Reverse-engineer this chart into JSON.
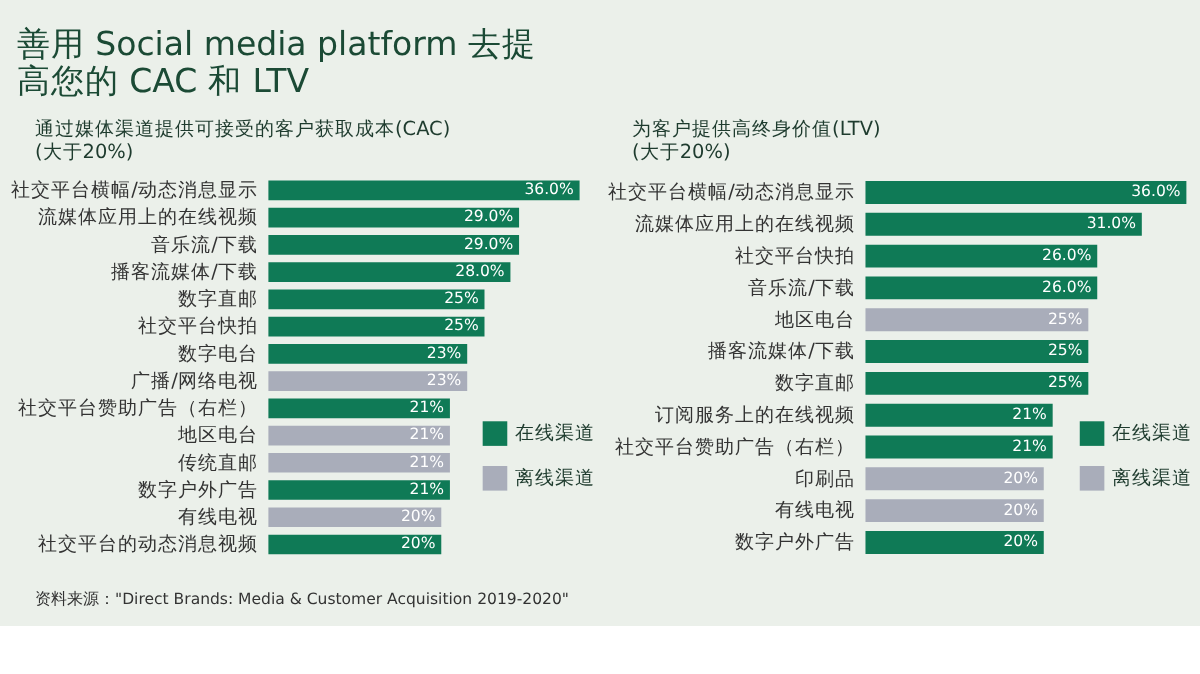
{
  "chart_data": [
    {
      "type": "bar",
      "orientation": "horizontal",
      "title": "善用 Social media platform 去提高您的 CAC 和 LTV",
      "subtitle": "通过媒体渠道提供可接受的客户获取成本(CAC)\n(大于20%)",
      "legend": "right",
      "categories": [
        "社交平台横幅/动态消息显示",
        "流媒体应用上的在线视频",
        "音乐流/下载",
        "播客流媒体/下载",
        "数字直邮",
        "社交平台快拍",
        "数字电台",
        "广播/网络电视",
        "社交平台赞助广告（右栏）",
        "地区电台",
        "传统直邮",
        "数字户外广告",
        "有线电视",
        "社交平台的动态消息视频"
      ],
      "series": [
        {
          "name": "在线渠道",
          "color": "#0f7a56",
          "values": [
            36.0,
            29.0,
            29.0,
            28.0,
            25,
            25,
            23,
            null,
            21,
            null,
            null,
            21,
            null,
            20
          ],
          "value_labels": [
            "36.0%",
            "29.0%",
            "29.0%",
            "28.0%",
            "25%",
            "25%",
            "23%",
            null,
            "21%",
            null,
            null,
            "21%",
            null,
            "20%"
          ]
        },
        {
          "name": "离线渠道",
          "color": "#a9adba",
          "values": [
            null,
            null,
            null,
            null,
            null,
            null,
            null,
            23,
            null,
            21,
            21,
            null,
            20,
            null
          ],
          "value_labels": [
            null,
            null,
            null,
            null,
            null,
            null,
            null,
            "23%",
            null,
            "21%",
            "21%",
            null,
            "20%",
            null
          ]
        }
      ],
      "annotations": [
        "资料来源：\"Direct Brands: Media & Customer Acquisition 2019-2020\""
      ]
    },
    {
      "type": "bar",
      "orientation": "horizontal",
      "subtitle": "为客户提供高终身价值(LTV)\n(大于20%)",
      "legend": "right",
      "categories": [
        "社交平台横幅/动态消息显示",
        "流媒体应用上的在线视频",
        "社交平台快拍",
        "音乐流/下载",
        "地区电台",
        "播客流媒体/下载",
        "数字直邮",
        "订阅服务上的在线视频",
        "社交平台赞助广告（右栏）",
        "印刷品",
        "有线电视",
        "数字户外广告"
      ],
      "series": [
        {
          "name": "在线渠道",
          "color": "#0f7a56",
          "values": [
            36.0,
            31.0,
            26.0,
            26.0,
            null,
            25,
            25,
            21,
            21,
            null,
            null,
            20
          ],
          "value_labels": [
            "36.0%",
            "31.0%",
            "26.0%",
            "26.0%",
            null,
            "25%",
            "25%",
            "21%",
            "21%",
            null,
            null,
            "20%"
          ]
        },
        {
          "name": "离线渠道",
          "color": "#a9adba",
          "values": [
            null,
            null,
            null,
            null,
            25,
            null,
            null,
            null,
            null,
            20,
            20,
            null
          ],
          "value_labels": [
            null,
            null,
            null,
            null,
            "25%",
            null,
            null,
            null,
            null,
            "20%",
            "20%",
            null
          ]
        }
      ]
    }
  ]
}
